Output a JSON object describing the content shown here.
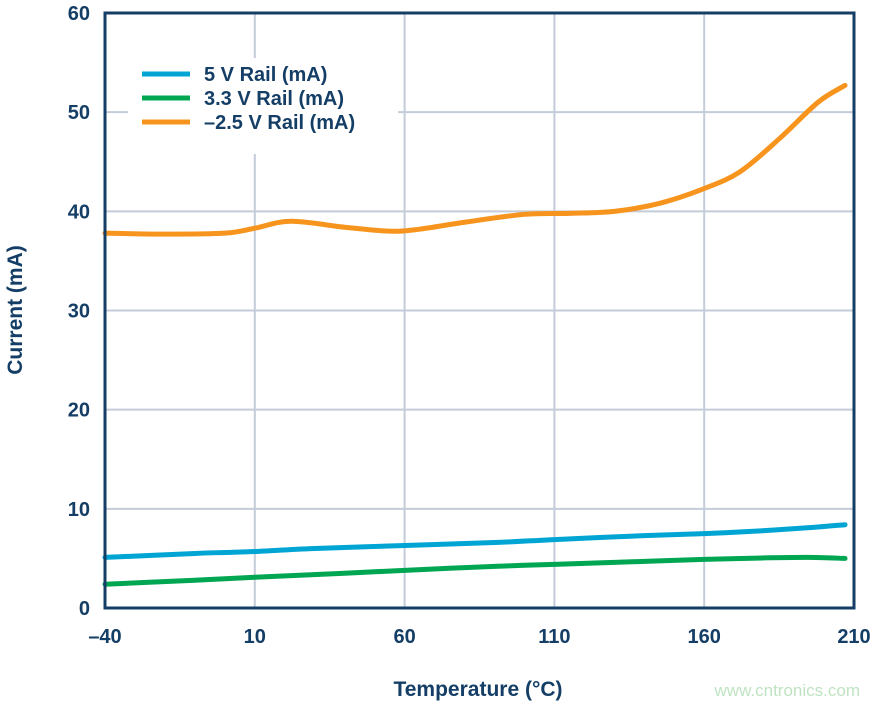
{
  "chart_data": {
    "type": "line",
    "title": "",
    "xlabel": "Temperature (°C)",
    "ylabel": "Current (mA)",
    "xlim": [
      -40,
      210
    ],
    "ylim": [
      0,
      60
    ],
    "xticks": [
      -40,
      10,
      60,
      110,
      160,
      210
    ],
    "xtick_labels": [
      "–40",
      "10",
      "60",
      "110",
      "160",
      "210"
    ],
    "yticks": [
      0,
      10,
      20,
      30,
      40,
      50,
      60
    ],
    "ytick_labels": [
      "0",
      "10",
      "20",
      "30",
      "40",
      "50",
      "60"
    ],
    "grid": true,
    "legend_position": "top-left",
    "series": [
      {
        "name": "5 V Rail (mA)",
        "color": "#00a5d4",
        "x": [
          -40,
          -10,
          0,
          10,
          30,
          60,
          90,
          110,
          140,
          160,
          180,
          195,
          207
        ],
        "y": [
          5.1,
          5.5,
          5.6,
          5.7,
          6.0,
          6.3,
          6.6,
          6.9,
          7.3,
          7.5,
          7.8,
          8.1,
          8.4
        ]
      },
      {
        "name": "3.3 V Rail (mA)",
        "color": "#00a651",
        "x": [
          -40,
          -10,
          10,
          40,
          60,
          90,
          110,
          140,
          160,
          180,
          195,
          207
        ],
        "y": [
          2.4,
          2.8,
          3.1,
          3.5,
          3.8,
          4.2,
          4.4,
          4.7,
          4.9,
          5.05,
          5.1,
          5.0
        ]
      },
      {
        "name": "–2.5 V Rail (mA)",
        "color": "#f7941d",
        "x": [
          -40,
          -20,
          0,
          10,
          22,
          40,
          55,
          65,
          80,
          100,
          115,
          130,
          145,
          160,
          172,
          185,
          198,
          207
        ],
        "y": [
          37.8,
          37.7,
          37.8,
          38.3,
          39.0,
          38.4,
          38.0,
          38.2,
          38.9,
          39.7,
          39.8,
          40.0,
          40.8,
          42.3,
          44.0,
          47.3,
          51.0,
          52.7
        ]
      }
    ]
  },
  "watermark": "www.cntronics.com",
  "colors": {
    "axis": "#143e66",
    "grid": "#c3ccd8"
  }
}
